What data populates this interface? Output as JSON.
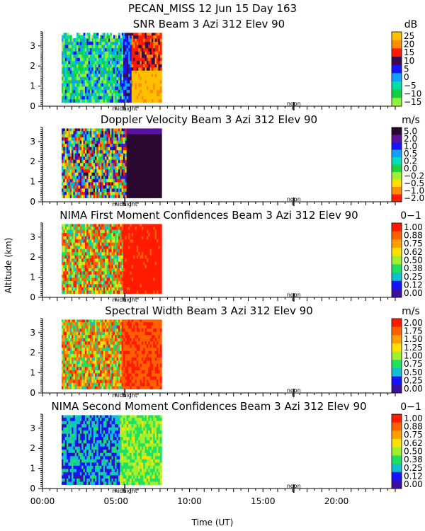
{
  "figure": {
    "title_line": "PECAN_MISS  12 Jun 15 Day 163",
    "y_axis_label": "Altitude (km)",
    "x_axis_label": "Time (UT)",
    "x_ticks": [
      "00:00",
      "05:00",
      "10:00",
      "15:00",
      "20:00"
    ],
    "marker_labels": {
      "midnight": "midnight",
      "noon": "noon"
    }
  },
  "chart_data": [
    {
      "type": "heatmap",
      "title": "SNR Beam 3 Azi 312 Elev 90",
      "units": "dB",
      "xlabel": "Time (UT)",
      "ylabel": "Altitude (km)",
      "xlim": [
        0,
        24
      ],
      "ylim": [
        0,
        3.7
      ],
      "y_ticks": [
        "0",
        "1",
        "2",
        "3"
      ],
      "data_time_range": [
        1.3,
        8.1
      ],
      "colorbar": [
        "25",
        "20",
        "15",
        "10",
        "5",
        "0",
        "−5",
        "−10",
        "−15"
      ],
      "colors": [
        "#ffc000",
        "#ff8c00",
        "#ff1a00",
        "#3a0a4a",
        "#1414ff",
        "#10a0ff",
        "#00e0a0",
        "#10d040",
        "#90f040"
      ]
    },
    {
      "type": "heatmap",
      "title": "Doppler Velocity Beam 3 Azi 312 Elev 90",
      "units": "m/s",
      "xlabel": "Time (UT)",
      "ylabel": "Altitude (km)",
      "xlim": [
        0,
        24
      ],
      "ylim": [
        0,
        3.7
      ],
      "y_ticks": [
        "0",
        "1",
        "2",
        "3"
      ],
      "data_time_range": [
        1.3,
        8.1
      ],
      "colorbar": [
        "5.0",
        "2.0",
        "1.0",
        "0.5",
        "0.2",
        "0.0",
        "−0.2",
        "−0.5",
        "−1.0",
        "−2.0"
      ],
      "colors": [
        "#2a0830",
        "#5a10a0",
        "#1414ff",
        "#10a0ff",
        "#00e0c0",
        "#20d040",
        "#a0f030",
        "#ffe000",
        "#ff8c00",
        "#ff1a00"
      ]
    },
    {
      "type": "heatmap",
      "title": "NIMA First Moment Confidences Beam 3 Azi 312 Elev 90",
      "units": "0−1",
      "xlabel": "Time (UT)",
      "ylabel": "Altitude (km)",
      "xlim": [
        0,
        24
      ],
      "ylim": [
        0,
        3.7
      ],
      "y_ticks": [
        "0",
        "1",
        "2",
        "3"
      ],
      "data_time_range": [
        1.3,
        8.1
      ],
      "colorbar": [
        "1.00",
        "0.88",
        "0.75",
        "0.62",
        "0.50",
        "0.38",
        "0.25",
        "0.12",
        "0.00"
      ],
      "colors": [
        "#ff1a00",
        "#ff6000",
        "#ffa000",
        "#ffe000",
        "#a0f030",
        "#20e060",
        "#10c0d0",
        "#1414ff",
        "#3a10a0"
      ]
    },
    {
      "type": "heatmap",
      "title": "Spectral Width Beam 3 Azi 312 Elev 90",
      "units": "m/s",
      "xlabel": "Time (UT)",
      "ylabel": "Altitude (km)",
      "xlim": [
        0,
        24
      ],
      "ylim": [
        0,
        3.7
      ],
      "y_ticks": [
        "0",
        "1",
        "2",
        "3"
      ],
      "data_time_range": [
        1.3,
        8.1
      ],
      "colorbar": [
        "2.00",
        "1.75",
        "1.50",
        "1.25",
        "1.00",
        "0.75",
        "0.50",
        "0.25",
        "0.00"
      ],
      "colors": [
        "#ff1a00",
        "#ff6000",
        "#ffa000",
        "#ffe000",
        "#a0f030",
        "#20e060",
        "#10c0d0",
        "#1414ff",
        "#3a10a0"
      ]
    },
    {
      "type": "heatmap",
      "title": "NIMA Second Moment Confidences Beam 3 Azi 312 Elev 90",
      "units": "0−1",
      "xlabel": "Time (UT)",
      "ylabel": "Altitude (km)",
      "xlim": [
        0,
        24
      ],
      "ylim": [
        0,
        3.7
      ],
      "y_ticks": [
        "0",
        "1",
        "2",
        "3"
      ],
      "data_time_range": [
        1.3,
        8.1
      ],
      "colorbar": [
        "1.00",
        "0.88",
        "0.75",
        "0.62",
        "0.50",
        "0.38",
        "0.25",
        "0.12",
        "0.00"
      ],
      "colors": [
        "#ff1a00",
        "#ff6000",
        "#ffa000",
        "#ffe000",
        "#a0f030",
        "#20e060",
        "#10c0d0",
        "#1414ff",
        "#3a10a0"
      ]
    }
  ]
}
